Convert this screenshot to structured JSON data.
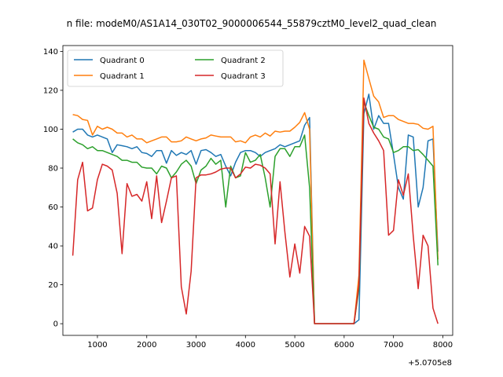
{
  "chart_data": {
    "type": "line",
    "title": "n file: modeM0/AS1A14_030T02_9000006544_55879cztM0_level2_quad_clean",
    "x_offset_label": "+5.0705e8",
    "xlim": [
      300,
      8200
    ],
    "ylim": [
      -6,
      143
    ],
    "x_ticks": [
      1000,
      2000,
      3000,
      4000,
      5000,
      6000,
      7000,
      8000
    ],
    "x_tick_labels": [
      "1000",
      "2000",
      "3000",
      "4000",
      "5000",
      "6000",
      "7000",
      "8000"
    ],
    "y_ticks": [
      0,
      20,
      40,
      60,
      80,
      100,
      120,
      140
    ],
    "y_tick_labels": [
      "0",
      "20",
      "40",
      "60",
      "80",
      "100",
      "120",
      "140"
    ],
    "legend_placement": "top-left",
    "legend_columns": 2,
    "grid": false,
    "series": [
      {
        "name": "Quadrant 0",
        "color": "#1f77b4",
        "points": [
          [
            500,
            98.5
          ],
          [
            600,
            100
          ],
          [
            700,
            100
          ],
          [
            800,
            97
          ],
          [
            900,
            96
          ],
          [
            1000,
            97
          ],
          [
            1100,
            96
          ],
          [
            1200,
            95
          ],
          [
            1300,
            88
          ],
          [
            1400,
            92
          ],
          [
            1500,
            91.5
          ],
          [
            1600,
            91
          ],
          [
            1700,
            90
          ],
          [
            1800,
            91
          ],
          [
            1900,
            88
          ],
          [
            2000,
            87.5
          ],
          [
            2100,
            86
          ],
          [
            2200,
            89
          ],
          [
            2300,
            89
          ],
          [
            2400,
            82.5
          ],
          [
            2500,
            89
          ],
          [
            2600,
            86.5
          ],
          [
            2700,
            88
          ],
          [
            2800,
            87
          ],
          [
            2900,
            89
          ],
          [
            3000,
            82
          ],
          [
            3100,
            89
          ],
          [
            3200,
            89.5
          ],
          [
            3300,
            88
          ],
          [
            3400,
            86
          ],
          [
            3500,
            87
          ],
          [
            3600,
            81
          ],
          [
            3700,
            76
          ],
          [
            3800,
            83
          ],
          [
            3900,
            88
          ],
          [
            4000,
            89
          ],
          [
            4100,
            89
          ],
          [
            4200,
            88
          ],
          [
            4300,
            86
          ],
          [
            4400,
            88
          ],
          [
            4500,
            89
          ],
          [
            4600,
            90
          ],
          [
            4700,
            92
          ],
          [
            4800,
            91
          ],
          [
            4900,
            92
          ],
          [
            5000,
            93
          ],
          [
            5100,
            94
          ],
          [
            5200,
            102
          ],
          [
            5300,
            106
          ],
          [
            5400,
            0
          ],
          [
            5500,
            0
          ],
          [
            5600,
            0
          ],
          [
            5700,
            0
          ],
          [
            5800,
            0
          ],
          [
            5900,
            0
          ],
          [
            6000,
            0
          ],
          [
            6100,
            0
          ],
          [
            6200,
            0
          ],
          [
            6300,
            2
          ],
          [
            6400,
            108
          ],
          [
            6500,
            118
          ],
          [
            6600,
            100
          ],
          [
            6700,
            107
          ],
          [
            6800,
            103
          ],
          [
            6900,
            103
          ],
          [
            7000,
            87
          ],
          [
            7100,
            70
          ],
          [
            7200,
            64
          ],
          [
            7300,
            97
          ],
          [
            7400,
            96
          ],
          [
            7500,
            60
          ],
          [
            7600,
            70
          ],
          [
            7700,
            94
          ],
          [
            7800,
            95
          ],
          [
            7900,
            37
          ]
        ]
      },
      {
        "name": "Quadrant 1",
        "color": "#ff7f0e",
        "points": [
          [
            500,
            107.5
          ],
          [
            600,
            107
          ],
          [
            700,
            105
          ],
          [
            800,
            104.5
          ],
          [
            900,
            97
          ],
          [
            1000,
            101.5
          ],
          [
            1100,
            100
          ],
          [
            1200,
            101
          ],
          [
            1300,
            100
          ],
          [
            1400,
            98
          ],
          [
            1500,
            98
          ],
          [
            1600,
            96
          ],
          [
            1700,
            97
          ],
          [
            1800,
            95
          ],
          [
            1900,
            95
          ],
          [
            2000,
            93
          ],
          [
            2100,
            94
          ],
          [
            2200,
            95
          ],
          [
            2300,
            96
          ],
          [
            2400,
            96
          ],
          [
            2500,
            93.5
          ],
          [
            2600,
            93.5
          ],
          [
            2700,
            94
          ],
          [
            2800,
            96
          ],
          [
            2900,
            95
          ],
          [
            3000,
            94
          ],
          [
            3100,
            95
          ],
          [
            3200,
            95.5
          ],
          [
            3300,
            97
          ],
          [
            3400,
            96.5
          ],
          [
            3500,
            96
          ],
          [
            3600,
            96
          ],
          [
            3700,
            96
          ],
          [
            3800,
            93.5
          ],
          [
            3900,
            94
          ],
          [
            4000,
            93
          ],
          [
            4100,
            96
          ],
          [
            4200,
            97
          ],
          [
            4300,
            96
          ],
          [
            4400,
            98
          ],
          [
            4500,
            96.5
          ],
          [
            4600,
            99
          ],
          [
            4700,
            98.5
          ],
          [
            4800,
            99
          ],
          [
            4900,
            99
          ],
          [
            5000,
            101
          ],
          [
            5100,
            103.5
          ],
          [
            5200,
            108.5
          ],
          [
            5300,
            100
          ],
          [
            5400,
            0
          ],
          [
            5500,
            0
          ],
          [
            5600,
            0
          ],
          [
            5700,
            0
          ],
          [
            5800,
            0
          ],
          [
            5900,
            0
          ],
          [
            6000,
            0
          ],
          [
            6100,
            0
          ],
          [
            6200,
            0
          ],
          [
            6300,
            25
          ],
          [
            6400,
            135.5
          ],
          [
            6500,
            126
          ],
          [
            6600,
            117
          ],
          [
            6700,
            114
          ],
          [
            6800,
            106
          ],
          [
            6900,
            107
          ],
          [
            7000,
            107
          ],
          [
            7100,
            105
          ],
          [
            7200,
            104
          ],
          [
            7300,
            103
          ],
          [
            7400,
            103
          ],
          [
            7500,
            102.5
          ],
          [
            7600,
            100.5
          ],
          [
            7700,
            100
          ],
          [
            7800,
            101.5
          ],
          [
            7900,
            33
          ]
        ]
      },
      {
        "name": "Quadrant 2",
        "color": "#2ca02c",
        "points": [
          [
            500,
            95
          ],
          [
            600,
            93
          ],
          [
            700,
            92
          ],
          [
            800,
            90
          ],
          [
            900,
            91
          ],
          [
            1000,
            89
          ],
          [
            1100,
            89
          ],
          [
            1200,
            88
          ],
          [
            1300,
            87
          ],
          [
            1400,
            86
          ],
          [
            1500,
            84
          ],
          [
            1600,
            84
          ],
          [
            1700,
            83
          ],
          [
            1800,
            83
          ],
          [
            1900,
            80.5
          ],
          [
            2000,
            80
          ],
          [
            2100,
            80
          ],
          [
            2200,
            77
          ],
          [
            2300,
            81
          ],
          [
            2400,
            80
          ],
          [
            2500,
            75
          ],
          [
            2600,
            78
          ],
          [
            2700,
            82
          ],
          [
            2800,
            84
          ],
          [
            2900,
            81
          ],
          [
            3000,
            72
          ],
          [
            3100,
            79
          ],
          [
            3200,
            81
          ],
          [
            3300,
            85
          ],
          [
            3400,
            82
          ],
          [
            3500,
            84
          ],
          [
            3600,
            60
          ],
          [
            3700,
            81
          ],
          [
            3800,
            75
          ],
          [
            3900,
            76
          ],
          [
            4000,
            88
          ],
          [
            4100,
            83
          ],
          [
            4200,
            84
          ],
          [
            4300,
            87
          ],
          [
            4400,
            75
          ],
          [
            4500,
            60
          ],
          [
            4600,
            86
          ],
          [
            4700,
            90
          ],
          [
            4800,
            90
          ],
          [
            4900,
            86
          ],
          [
            5000,
            91
          ],
          [
            5100,
            91
          ],
          [
            5200,
            97
          ],
          [
            5300,
            70
          ],
          [
            5400,
            0
          ],
          [
            5500,
            0
          ],
          [
            5600,
            0
          ],
          [
            5700,
            0
          ],
          [
            5800,
            0
          ],
          [
            5900,
            0
          ],
          [
            6000,
            0
          ],
          [
            6100,
            0
          ],
          [
            6200,
            0
          ],
          [
            6300,
            18
          ],
          [
            6400,
            114
          ],
          [
            6500,
            107
          ],
          [
            6600,
            101
          ],
          [
            6700,
            100
          ],
          [
            6800,
            96
          ],
          [
            6900,
            95
          ],
          [
            7000,
            88
          ],
          [
            7100,
            89
          ],
          [
            7200,
            91
          ],
          [
            7300,
            91
          ],
          [
            7400,
            89
          ],
          [
            7500,
            89.5
          ],
          [
            7600,
            87
          ],
          [
            7700,
            84
          ],
          [
            7800,
            81
          ],
          [
            7900,
            30
          ]
        ]
      },
      {
        "name": "Quadrant 3",
        "color": "#d62728",
        "points": [
          [
            500,
            35
          ],
          [
            600,
            74
          ],
          [
            700,
            83
          ],
          [
            800,
            58
          ],
          [
            900,
            59.5
          ],
          [
            1000,
            74
          ],
          [
            1100,
            82
          ],
          [
            1200,
            81
          ],
          [
            1300,
            79
          ],
          [
            1400,
            67
          ],
          [
            1500,
            36
          ],
          [
            1600,
            72
          ],
          [
            1700,
            65.5
          ],
          [
            1800,
            66.5
          ],
          [
            1900,
            63
          ],
          [
            2000,
            73
          ],
          [
            2100,
            54
          ],
          [
            2200,
            76
          ],
          [
            2300,
            52
          ],
          [
            2400,
            63
          ],
          [
            2500,
            75
          ],
          [
            2600,
            76
          ],
          [
            2700,
            19
          ],
          [
            2800,
            5
          ],
          [
            2900,
            27
          ],
          [
            3000,
            75
          ],
          [
            3100,
            76.5
          ],
          [
            3200,
            76.5
          ],
          [
            3300,
            77
          ],
          [
            3400,
            78
          ],
          [
            3500,
            79.5
          ],
          [
            3600,
            80
          ],
          [
            3700,
            80
          ],
          [
            3800,
            75
          ],
          [
            3900,
            77
          ],
          [
            4000,
            80.5
          ],
          [
            4100,
            80
          ],
          [
            4200,
            82
          ],
          [
            4300,
            81.5
          ],
          [
            4400,
            80
          ],
          [
            4500,
            77
          ],
          [
            4600,
            41
          ],
          [
            4700,
            73
          ],
          [
            4800,
            47
          ],
          [
            4900,
            24
          ],
          [
            5000,
            41
          ],
          [
            5100,
            26
          ],
          [
            5200,
            50
          ],
          [
            5300,
            45
          ],
          [
            5400,
            0
          ],
          [
            5500,
            0
          ],
          [
            5600,
            0
          ],
          [
            5700,
            0
          ],
          [
            5800,
            0
          ],
          [
            5900,
            0
          ],
          [
            6000,
            0
          ],
          [
            6100,
            0
          ],
          [
            6200,
            0
          ],
          [
            6300,
            20
          ],
          [
            6400,
            116
          ],
          [
            6500,
            103
          ],
          [
            6600,
            98
          ],
          [
            6700,
            94
          ],
          [
            6800,
            89
          ],
          [
            6900,
            45.5
          ],
          [
            7000,
            48
          ],
          [
            7100,
            74
          ],
          [
            7200,
            66
          ],
          [
            7300,
            77
          ],
          [
            7400,
            45
          ],
          [
            7500,
            18
          ],
          [
            7600,
            45.5
          ],
          [
            7700,
            40
          ],
          [
            7800,
            8
          ],
          [
            7900,
            0
          ]
        ]
      }
    ]
  }
}
